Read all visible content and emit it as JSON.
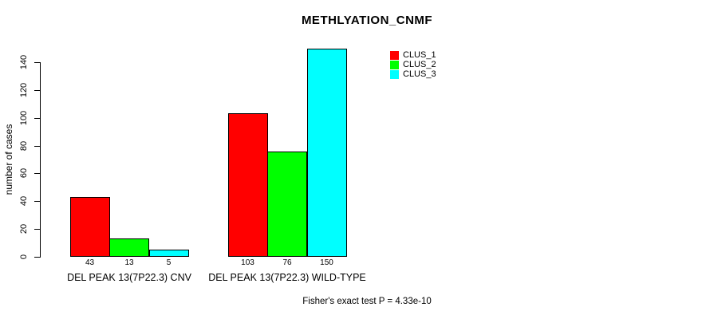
{
  "chart_data": {
    "type": "bar",
    "title": "METHLYATION_CNMF",
    "ylabel": "number of cases",
    "xlabel": "",
    "categories": [
      "DEL PEAK 13(7P22.3) CNV",
      "DEL PEAK 13(7P22.3) WILD-TYPE"
    ],
    "series": [
      {
        "name": "CLUS_1",
        "color": "#ff0000",
        "values": [
          43,
          103
        ]
      },
      {
        "name": "CLUS_2",
        "color": "#00ff00",
        "values": [
          13,
          76
        ]
      },
      {
        "name": "CLUS_3",
        "color": "#00ffff",
        "values": [
          5,
          150
        ]
      }
    ],
    "value_labels": [
      [
        43,
        13,
        5
      ],
      [
        103,
        76,
        150
      ]
    ],
    "ylim": [
      0,
      140
    ],
    "yticks": [
      0,
      20,
      40,
      60,
      80,
      100,
      120,
      140
    ],
    "grid": false,
    "legend_position": "top-right",
    "annotation": "Fisher's exact test P = 4.33e-10"
  },
  "colors": {
    "background": "#ffffff",
    "axis": "#000000",
    "text": "#000000",
    "bar_border": "#000000"
  }
}
